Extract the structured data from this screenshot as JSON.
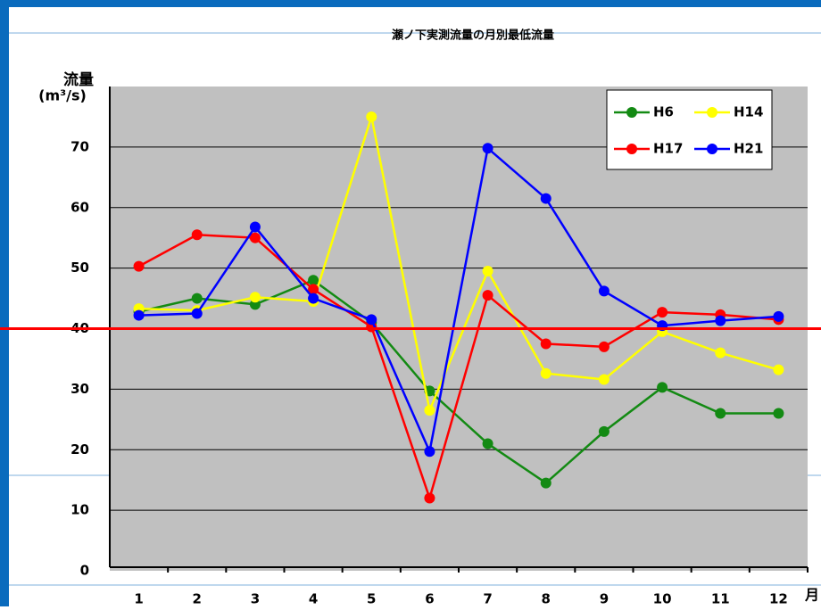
{
  "chart_data": {
    "type": "line",
    "title": "瀬ノ下実測流量の月別最低流量",
    "y_label": "流量",
    "y_unit": "(m³/s)",
    "x_label": "月",
    "categories": [
      "1",
      "2",
      "3",
      "4",
      "5",
      "6",
      "7",
      "8",
      "9",
      "10",
      "11",
      "12"
    ],
    "series": [
      {
        "name": "H6",
        "color": "#138a13",
        "values": [
          42.8,
          45,
          44,
          48,
          41,
          29.7,
          21,
          14.5,
          23,
          30.3,
          26,
          26
        ]
      },
      {
        "name": "H14",
        "color": "#ffff00",
        "values": [
          43.3,
          43,
          45.2,
          44.5,
          75,
          26.5,
          49.5,
          32.6,
          31.6,
          39.5,
          36,
          33.2
        ]
      },
      {
        "name": "H17",
        "color": "#ff0000",
        "values": [
          50.3,
          55.5,
          55,
          46.5,
          40.3,
          12,
          45.5,
          37.5,
          37,
          42.7,
          42.3,
          41.5
        ]
      },
      {
        "name": "H21",
        "color": "#0000ff",
        "values": [
          42.2,
          42.5,
          56.8,
          45,
          41.5,
          19.7,
          69.8,
          61.5,
          46.2,
          40.5,
          41.3,
          42
        ]
      }
    ],
    "ylim": [
      0,
      80
    ],
    "yticks": [
      0,
      10,
      20,
      30,
      40,
      50,
      60,
      70
    ],
    "grid": true,
    "reference_line": {
      "value": 40,
      "color": "#ff0000"
    },
    "legend": "upper right"
  }
}
